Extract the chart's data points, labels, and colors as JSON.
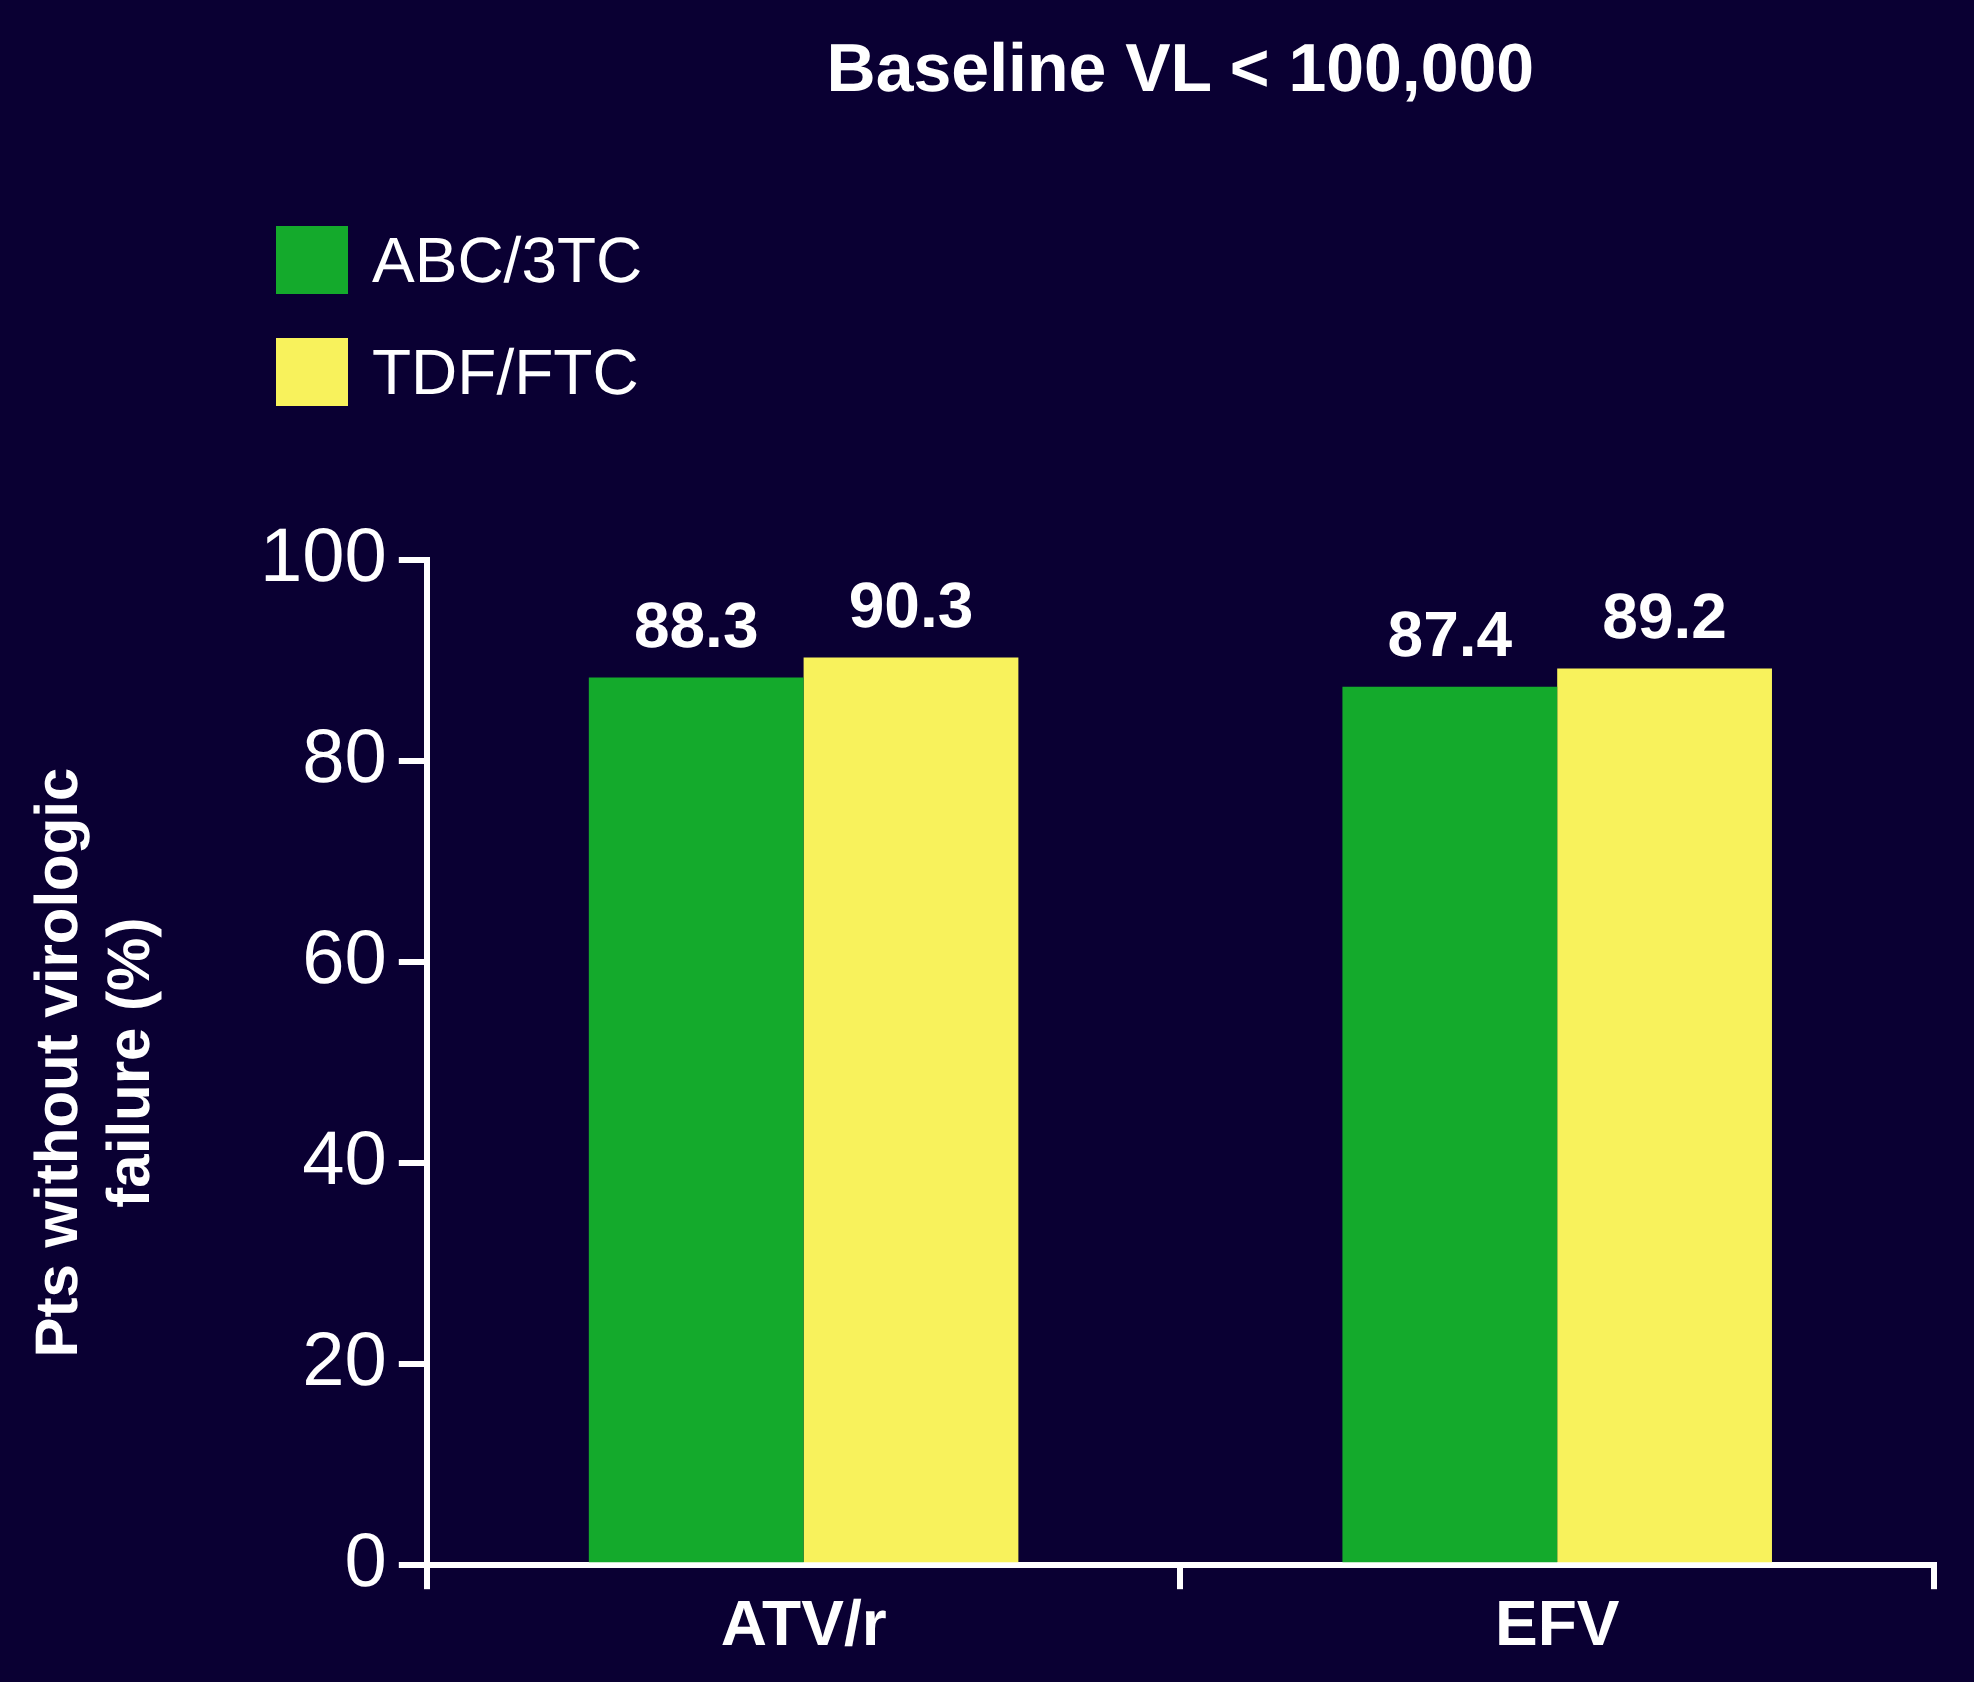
{
  "chart_data": {
    "type": "bar",
    "title": "Baseline VL < 100,000",
    "ylabel": "Pts without virologic failure (%)",
    "categories": [
      "ATV/r",
      "EFV"
    ],
    "series": [
      {
        "name": "ABC/3TC",
        "color": "#14aa2c",
        "values": [
          88.3,
          87.4
        ]
      },
      {
        "name": "TDF/FTC",
        "color": "#f8f25c",
        "values": [
          90.3,
          89.2
        ]
      }
    ],
    "ylim": [
      0,
      100
    ],
    "yticks": [
      0,
      20,
      40,
      60,
      80,
      100
    ],
    "grid": false,
    "legend": "top left",
    "data_labels": true
  }
}
